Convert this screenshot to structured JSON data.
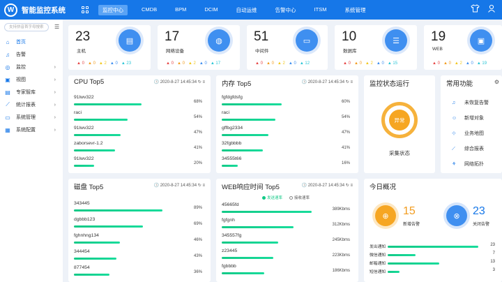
{
  "header": {
    "logo_letter": "W",
    "title": "智能监控系统",
    "nav": [
      {
        "label": "监控中心",
        "active": true
      },
      {
        "label": "CMDB"
      },
      {
        "label": "BPM"
      },
      {
        "label": "DCIM"
      },
      {
        "label": "自动运维"
      },
      {
        "label": "告警中心"
      },
      {
        "label": "ITSM"
      },
      {
        "label": "系统管理"
      }
    ],
    "icons": [
      "grid-icon",
      "shirt-icon",
      "user-icon"
    ]
  },
  "sidebar": {
    "search_placeholder": "支持拼音首字母搜索",
    "items": [
      {
        "icon": "home-icon",
        "label": "首页",
        "active": true
      },
      {
        "icon": "bell-icon",
        "label": "告警"
      },
      {
        "icon": "monitor-icon",
        "label": "监控",
        "arrow": true
      },
      {
        "icon": "view-icon",
        "label": "视图",
        "arrow": true
      },
      {
        "icon": "book-icon",
        "label": "专家智库",
        "arrow": true
      },
      {
        "icon": "chart-icon",
        "label": "统计报表",
        "arrow": true
      },
      {
        "icon": "gear-icon",
        "label": "系统管理",
        "arrow": true
      },
      {
        "icon": "config-icon",
        "label": "系统配置",
        "arrow": true
      }
    ]
  },
  "stats": [
    {
      "value": "23",
      "label": "主机",
      "icon": "host-icon",
      "alarms": [
        "0",
        "0",
        "2",
        "0",
        "23"
      ]
    },
    {
      "value": "17",
      "label": "网络设备",
      "icon": "network-icon",
      "alarms": [
        "0",
        "0",
        "2",
        "0",
        "17"
      ]
    },
    {
      "value": "51",
      "label": "中间件",
      "icon": "middleware-icon",
      "alarms": [
        "0",
        "0",
        "2",
        "0",
        "12"
      ]
    },
    {
      "value": "10",
      "label": "数据库",
      "icon": "database-icon",
      "alarms": [
        "0",
        "0",
        "2",
        "0",
        "15"
      ]
    },
    {
      "value": "19",
      "label": "WEB",
      "icon": "web-icon",
      "alarms": [
        "0",
        "0",
        "2",
        "0",
        "19"
      ]
    }
  ],
  "cpu": {
    "title": "CPU Top5",
    "date": "2020-8-27 14:45:34",
    "rows": [
      {
        "name": "91lwv322",
        "pct": "68%",
        "v": 0.68
      },
      {
        "name": "raci",
        "pct": "54%",
        "v": 0.54
      },
      {
        "name": "91lwv322",
        "pct": "47%",
        "v": 0.47
      },
      {
        "name": "zaborsevr-1.2",
        "pct": "41%",
        "v": 0.41
      },
      {
        "name": "91lwv322",
        "pct": "20%",
        "v": 0.2
      }
    ]
  },
  "mem": {
    "title": "内存 Top5",
    "date": "2020-8-27 14:45:34",
    "rows": [
      {
        "name": "fgfdgfdsfg",
        "pct": "60%",
        "v": 0.6
      },
      {
        "name": "raci",
        "pct": "54%",
        "v": 0.54
      },
      {
        "name": "gffbg2334",
        "pct": "47%",
        "v": 0.47
      },
      {
        "name": "32fgbbbb",
        "pct": "41%",
        "v": 0.41
      },
      {
        "name": "34555t66",
        "pct": "16%",
        "v": 0.16
      }
    ]
  },
  "status": {
    "title": "监控状态运行",
    "state": "异常",
    "caption": "采集状态"
  },
  "functions": {
    "title": "常用功能",
    "items": [
      {
        "icon": "bell-icon",
        "label": "未恢复告警"
      },
      {
        "icon": "people-icon",
        "label": "新增对象"
      },
      {
        "icon": "map-icon",
        "label": "业务地图"
      },
      {
        "icon": "report-icon",
        "label": "综合报表"
      },
      {
        "icon": "topology-icon",
        "label": "网络拓扑"
      }
    ]
  },
  "disk": {
    "title": "磁盘 Top5",
    "date": "2020-8-27 14:45:34",
    "rows": [
      {
        "name": "343445",
        "pct": "89%",
        "v": 0.89
      },
      {
        "name": "dgbbb123",
        "pct": "69%",
        "v": 0.69
      },
      {
        "name": "fghnhng134",
        "pct": "46%",
        "v": 0.46
      },
      {
        "name": "344454",
        "pct": "43%",
        "v": 0.43
      },
      {
        "name": "877454",
        "pct": "36%",
        "v": 0.36
      }
    ]
  },
  "web": {
    "title": "WEB响应时间  Top5",
    "date": "2020-8-27 14:45:34",
    "legend": [
      "发送速率",
      "接收速率"
    ],
    "rows": [
      {
        "name": "45665fd",
        "pct": "389Kbms",
        "v": 0.9
      },
      {
        "name": "fgfgnh",
        "pct": "312Kbms",
        "v": 0.72
      },
      {
        "name": "345557fg",
        "pct": "245Kbms",
        "v": 0.57
      },
      {
        "name": "z23445",
        "pct": "223Kbms",
        "v": 0.52
      },
      {
        "name": "fgbbbb",
        "pct": "186Kbms",
        "v": 0.43
      }
    ]
  },
  "today": {
    "title": "今日概况",
    "new_alarm": "15",
    "new_alarm_label": "新增告警",
    "closed_alarm": "23",
    "closed_alarm_label": "关闭告警",
    "notifs": [
      {
        "label": "发出通知",
        "value": "23",
        "v": 1.0
      },
      {
        "label": "微信通知",
        "value": "7",
        "v": 0.3
      },
      {
        "label": "邮箱通知",
        "value": "13",
        "v": 0.57
      },
      {
        "label": "短信通知",
        "value": "3",
        "v": 0.13
      }
    ]
  }
}
